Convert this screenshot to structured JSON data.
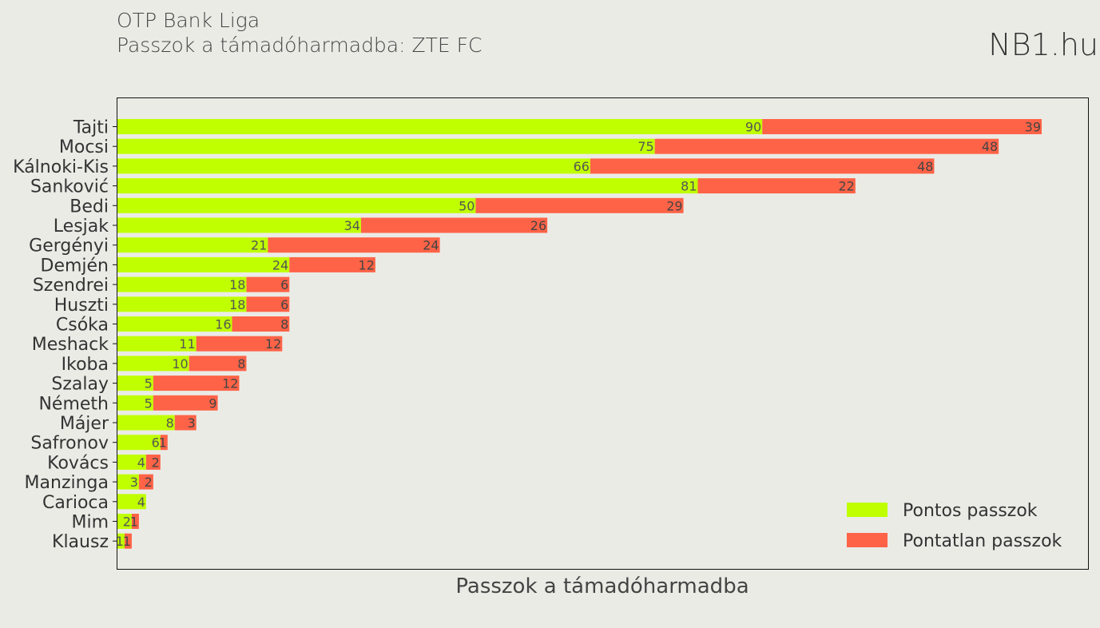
{
  "header": {
    "title": "OTP Bank Liga",
    "subtitle": "Passzok a támadóharmadba: ZTE FC",
    "brand": "NB1.hu"
  },
  "chart_data": {
    "type": "bar",
    "orientation": "horizontal",
    "stacked": true,
    "xlabel": "Passzok a támadóharmadba",
    "ylabel": "",
    "xlim": [
      0,
      135
    ],
    "grid": false,
    "legend_position": "bottom-right",
    "categories": [
      "Tajti",
      "Mocsi",
      "Kálnoki-Kis",
      "Sanković",
      "Bedi",
      "Lesjak",
      "Gergényi",
      "Demjén",
      "Szendrei",
      "Huszti",
      "Csóka",
      "Meshack",
      "Ikoba",
      "Szalay",
      "Németh",
      "Májer",
      "Safronov",
      "Kovács",
      "Manzinga",
      "Carioca",
      "Mim",
      "Klausz"
    ],
    "series": [
      {
        "name": "Pontos passzok",
        "color": "#c0ff00",
        "values": [
          90,
          75,
          66,
          81,
          50,
          34,
          21,
          24,
          18,
          18,
          16,
          11,
          10,
          5,
          5,
          8,
          6,
          4,
          3,
          4,
          2,
          1
        ]
      },
      {
        "name": "Pontatlan passzok",
        "color": "#ff6347",
        "values": [
          39,
          48,
          48,
          22,
          29,
          26,
          24,
          12,
          6,
          6,
          8,
          12,
          8,
          12,
          9,
          3,
          1,
          2,
          2,
          0,
          1,
          1
        ]
      }
    ]
  }
}
